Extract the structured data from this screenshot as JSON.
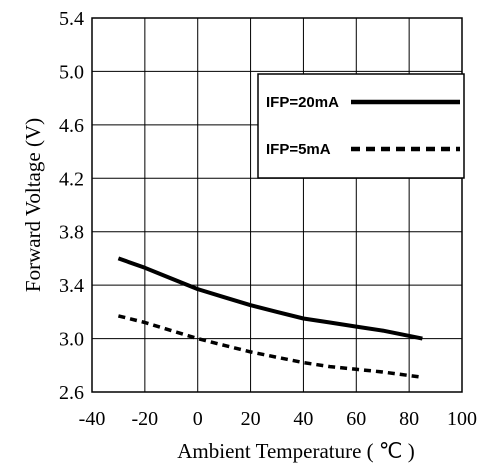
{
  "chart_data": {
    "type": "line",
    "xlabel": "Ambient Temperature ( ℃ )",
    "ylabel": "Forward Voltage (V)",
    "xlim": [
      -40,
      100
    ],
    "ylim": [
      2.6,
      5.4
    ],
    "x_ticks": [
      "-40",
      "-20",
      "0",
      "20",
      "40",
      "60",
      "80",
      "100"
    ],
    "y_ticks": [
      "2.6",
      "3.0",
      "3.4",
      "3.8",
      "4.2",
      "4.6",
      "5.0",
      "5.4"
    ],
    "grid": true,
    "legend_position": "right",
    "series": [
      {
        "name": "IFP=20mA",
        "style": "solid",
        "color": "#000000",
        "x": [
          -30,
          -20,
          -10,
          0,
          10,
          20,
          30,
          40,
          50,
          60,
          70,
          85
        ],
        "y": [
          3.6,
          3.53,
          3.45,
          3.37,
          3.31,
          3.25,
          3.2,
          3.15,
          3.12,
          3.09,
          3.06,
          3.0
        ]
      },
      {
        "name": "IFP=5mA",
        "style": "dashed",
        "color": "#000000",
        "x": [
          -30,
          -20,
          -10,
          0,
          10,
          20,
          30,
          40,
          50,
          60,
          70,
          85
        ],
        "y": [
          3.17,
          3.12,
          3.06,
          3.0,
          2.95,
          2.9,
          2.86,
          2.82,
          2.79,
          2.77,
          2.75,
          2.71
        ]
      }
    ]
  }
}
